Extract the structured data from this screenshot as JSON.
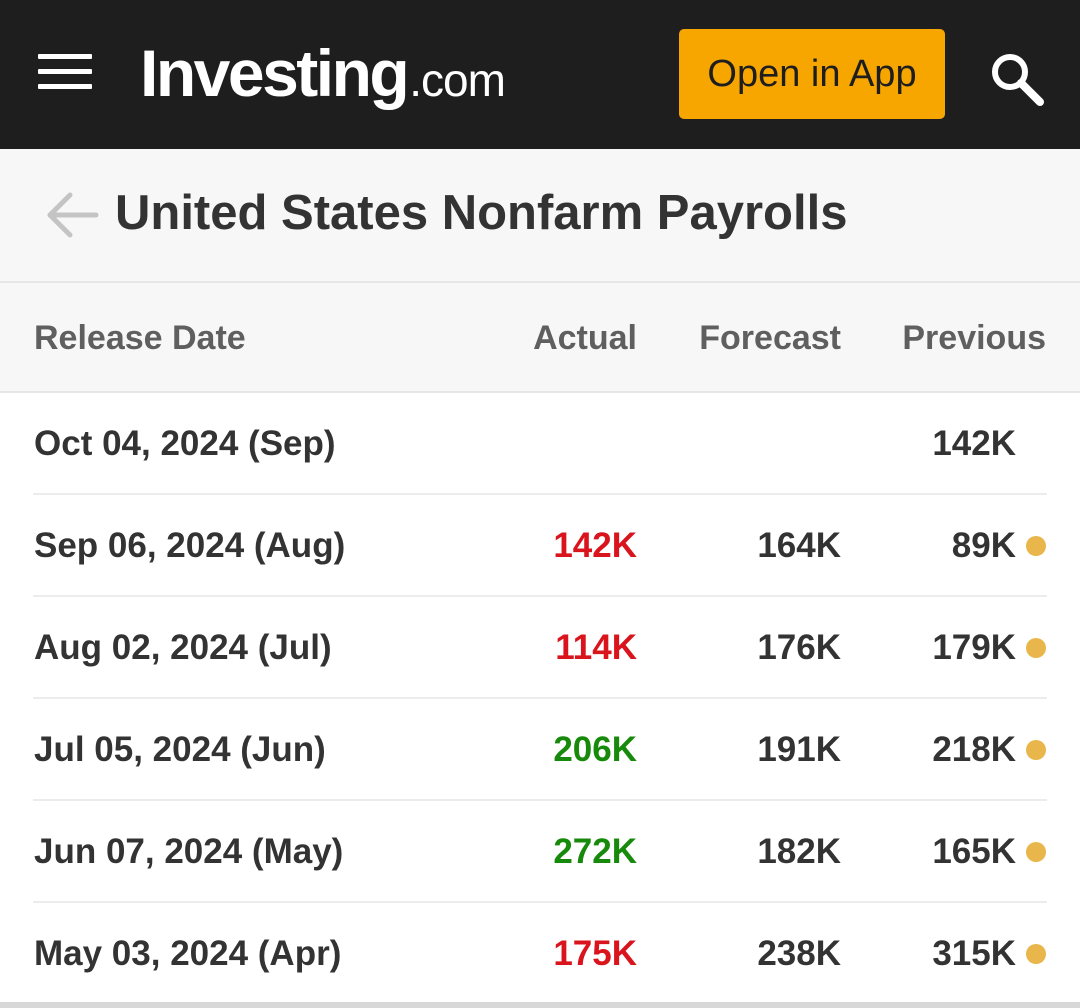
{
  "header": {
    "logo_main": "Investing",
    "logo_suffix": ".com",
    "open_app_label": "Open in App",
    "bg_color": "#1e1e1e",
    "button_color": "#f7a600"
  },
  "page": {
    "title": "United States Nonfarm Payrolls"
  },
  "table": {
    "columns": {
      "release_date": "Release Date",
      "actual": "Actual",
      "forecast": "Forecast",
      "previous": "Previous"
    },
    "rows": [
      {
        "date": "Oct 04, 2024 (Sep)",
        "actual": "",
        "actual_status": "none",
        "forecast": "",
        "previous": "142K",
        "revised": false
      },
      {
        "date": "Sep 06, 2024 (Aug)",
        "actual": "142K",
        "actual_status": "worse",
        "forecast": "164K",
        "previous": "89K",
        "revised": true
      },
      {
        "date": "Aug 02, 2024 (Jul)",
        "actual": "114K",
        "actual_status": "worse",
        "forecast": "176K",
        "previous": "179K",
        "revised": true
      },
      {
        "date": "Jul 05, 2024 (Jun)",
        "actual": "206K",
        "actual_status": "better",
        "forecast": "191K",
        "previous": "218K",
        "revised": true
      },
      {
        "date": "Jun 07, 2024 (May)",
        "actual": "272K",
        "actual_status": "better",
        "forecast": "182K",
        "previous": "165K",
        "revised": true
      },
      {
        "date": "May 03, 2024 (Apr)",
        "actual": "175K",
        "actual_status": "worse",
        "forecast": "238K",
        "previous": "315K",
        "revised": true
      }
    ]
  },
  "colors": {
    "worse": "#d9141c",
    "better": "#188a0b",
    "revised_dot": "#e8b64a",
    "text": "#333333"
  },
  "icons": {
    "menu": "hamburger-menu-icon",
    "search": "search-icon",
    "back": "back-arrow-icon",
    "revised": "revised-dot-icon"
  }
}
